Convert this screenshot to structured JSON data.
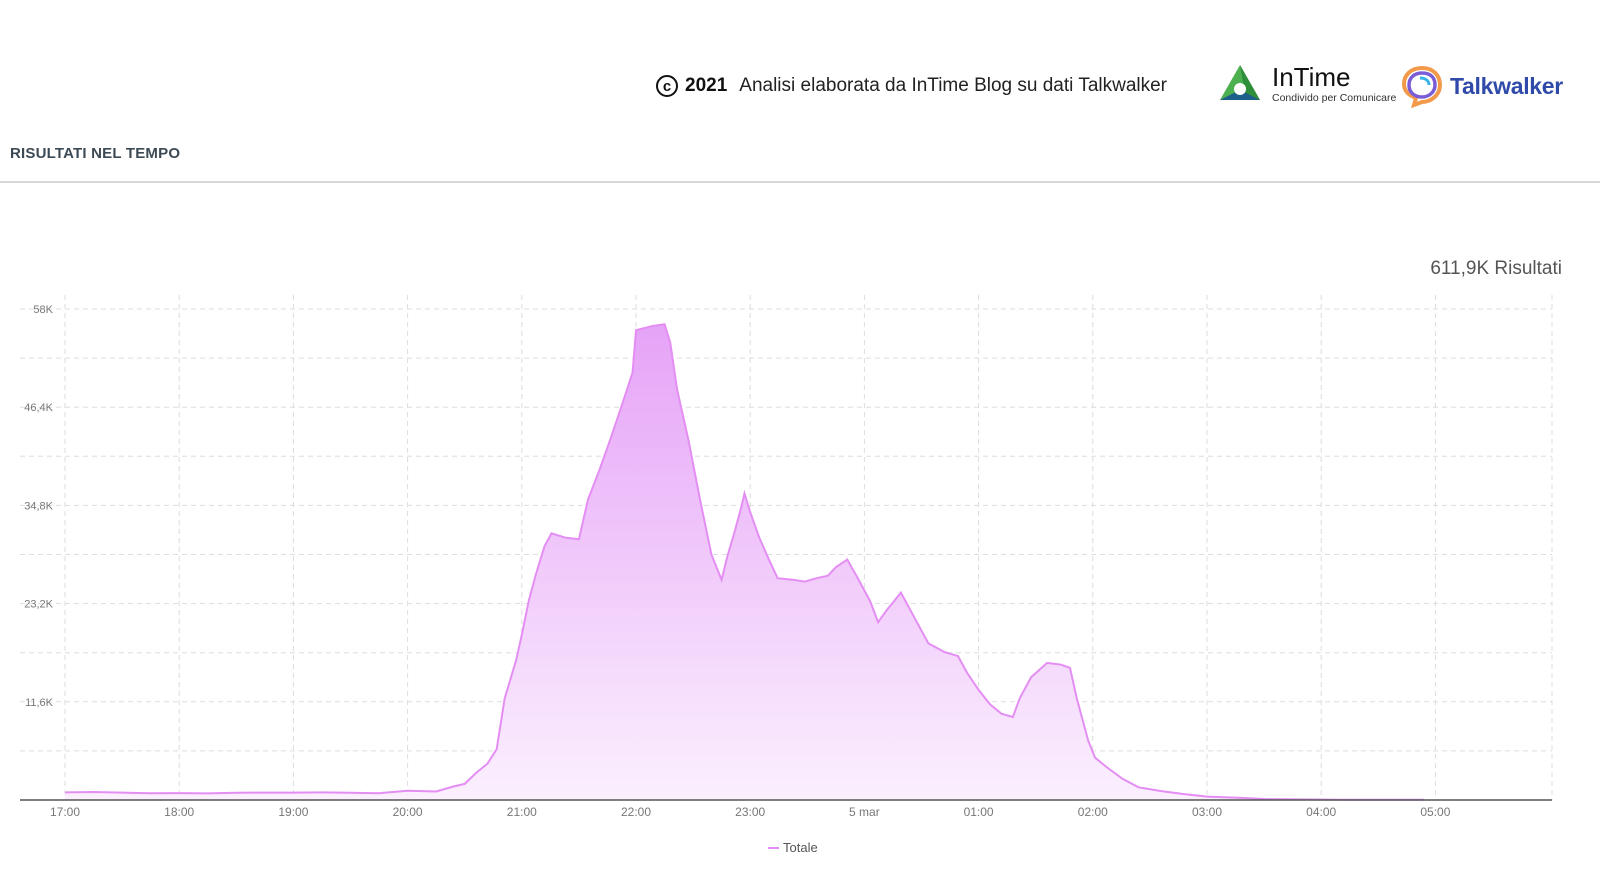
{
  "header": {
    "copyright_year": "2021",
    "credit_text": "Analisi elaborata da InTime Blog su dati Talkwalker",
    "intime_name": "InTime",
    "intime_subtitle": "Condivido per Comunicare",
    "talkwalker_name": "Talkwalker"
  },
  "section": {
    "title": "RISULTATI NEL TEMPO"
  },
  "summary": {
    "total_results": "611,9K Risultati"
  },
  "colors": {
    "series_line": "#e48ef4",
    "fill_top": "#e6a3f7",
    "fill_bottom": "#fbf0fe",
    "grid": "#dddddd",
    "axis_text": "#777777",
    "talkwalker_brand": "#2f4aa8"
  },
  "icons": [
    "copyright-icon",
    "intime-logo-icon",
    "talkwalker-logo-icon"
  ],
  "chart_data": {
    "type": "area",
    "x_tick_labels": [
      "17:00",
      "18:00",
      "19:00",
      "20:00",
      "21:00",
      "22:00",
      "23:00",
      "5 mar",
      "01:00",
      "02:00",
      "03:00",
      "04:00",
      "05:00"
    ],
    "y_tick_labels": [
      "58K",
      "46,4K",
      "34,8K",
      "23,2K",
      "11,6K"
    ],
    "ylim": [
      0,
      58000
    ],
    "grid": true,
    "legend_position": "bottom-center",
    "series": [
      {
        "name": "Totale",
        "points": [
          [
            0.0,
            900
          ],
          [
            0.25,
            950
          ],
          [
            0.5,
            880
          ],
          [
            0.75,
            800
          ],
          [
            1.0,
            820
          ],
          [
            1.25,
            780
          ],
          [
            1.5,
            850
          ],
          [
            1.75,
            880
          ],
          [
            2.0,
            880
          ],
          [
            2.25,
            900
          ],
          [
            2.5,
            850
          ],
          [
            2.75,
            800
          ],
          [
            3.0,
            1100
          ],
          [
            3.25,
            1000
          ],
          [
            3.4,
            1600
          ],
          [
            3.5,
            1900
          ],
          [
            3.6,
            3200
          ],
          [
            3.7,
            4300
          ],
          [
            3.78,
            6000
          ],
          [
            3.85,
            12000
          ],
          [
            3.95,
            16500
          ],
          [
            4.0,
            19500
          ],
          [
            4.06,
            23500
          ],
          [
            4.12,
            26500
          ],
          [
            4.2,
            30000
          ],
          [
            4.26,
            31500
          ],
          [
            4.38,
            31000
          ],
          [
            4.5,
            30800
          ],
          [
            4.58,
            35500
          ],
          [
            4.68,
            39000
          ],
          [
            4.78,
            42800
          ],
          [
            4.88,
            46800
          ],
          [
            4.97,
            50500
          ],
          [
            5.0,
            55500
          ],
          [
            5.15,
            56000
          ],
          [
            5.25,
            56200
          ],
          [
            5.3,
            54000
          ],
          [
            5.36,
            48500
          ],
          [
            5.46,
            42500
          ],
          [
            5.56,
            35500
          ],
          [
            5.66,
            29000
          ],
          [
            5.75,
            26000
          ],
          [
            5.8,
            28800
          ],
          [
            5.86,
            31500
          ],
          [
            5.92,
            34500
          ],
          [
            5.95,
            36200
          ],
          [
            6.0,
            34000
          ],
          [
            6.08,
            31000
          ],
          [
            6.16,
            28500
          ],
          [
            6.24,
            26200
          ],
          [
            6.38,
            26000
          ],
          [
            6.48,
            25800
          ],
          [
            6.58,
            26200
          ],
          [
            6.68,
            26500
          ],
          [
            6.75,
            27500
          ],
          [
            6.85,
            28400
          ],
          [
            6.95,
            26000
          ],
          [
            7.05,
            23500
          ],
          [
            7.12,
            21000
          ],
          [
            7.2,
            22500
          ],
          [
            7.26,
            23500
          ],
          [
            7.32,
            24500
          ],
          [
            7.38,
            23000
          ],
          [
            7.46,
            21000
          ],
          [
            7.56,
            18500
          ],
          [
            7.7,
            17500
          ],
          [
            7.82,
            17000
          ],
          [
            7.9,
            15000
          ],
          [
            8.0,
            13000
          ],
          [
            8.1,
            11300
          ],
          [
            8.2,
            10200
          ],
          [
            8.3,
            9800
          ],
          [
            8.36,
            12000
          ],
          [
            8.46,
            14500
          ],
          [
            8.6,
            16200
          ],
          [
            8.72,
            16000
          ],
          [
            8.8,
            15600
          ],
          [
            8.86,
            12000
          ],
          [
            8.96,
            7000
          ],
          [
            9.02,
            5000
          ],
          [
            9.12,
            3900
          ],
          [
            9.26,
            2500
          ],
          [
            9.4,
            1500
          ],
          [
            9.6,
            1050
          ],
          [
            9.8,
            700
          ],
          [
            10.0,
            400
          ],
          [
            10.3,
            250
          ],
          [
            10.5,
            120
          ],
          [
            10.8,
            70
          ],
          [
            11.2,
            40
          ],
          [
            11.6,
            30
          ],
          [
            11.9,
            25
          ]
        ]
      }
    ]
  }
}
